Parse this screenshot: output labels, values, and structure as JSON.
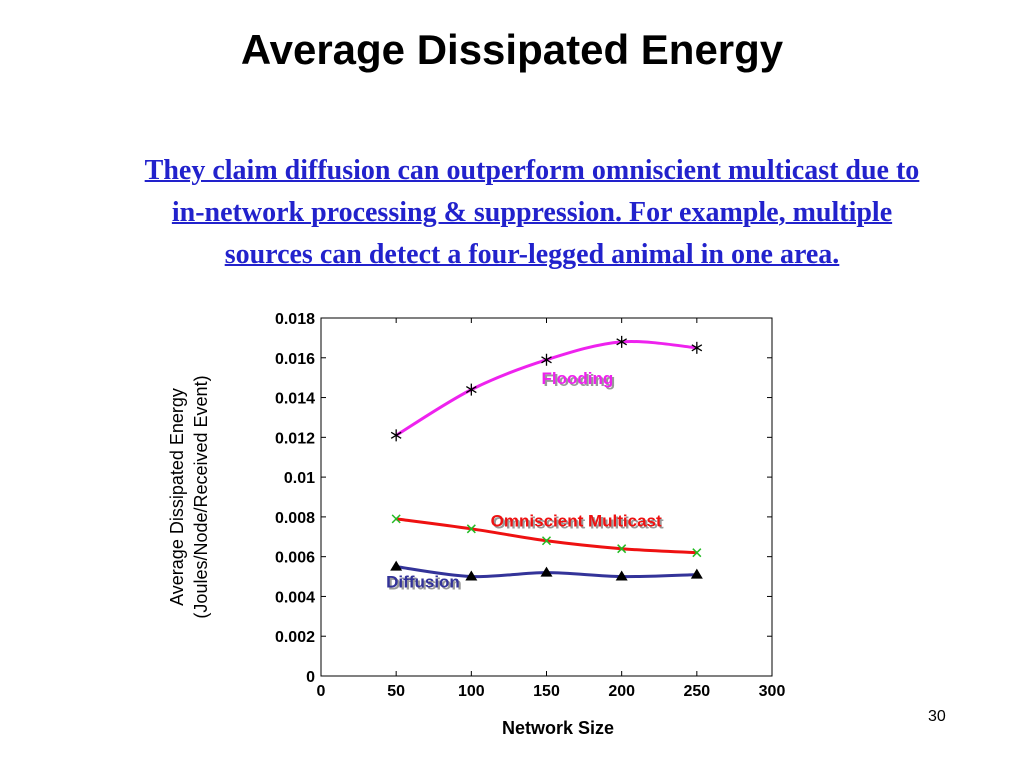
{
  "slide": {
    "title": "Average Dissipated Energy",
    "callout_lines": [
      "They claim diffusion can outperform omniscient multicast due to",
      "in-network processing & suppression. For example, multiple",
      "sources can detect a four-legged animal in one area."
    ],
    "page_number": "30"
  },
  "colors": {
    "callout": "#2222cc",
    "flooding": "#ee22ee",
    "omniscient": "#ee1111",
    "diffusion": "#333399",
    "marker_omni": "#22bb22"
  },
  "chart_data": {
    "type": "line",
    "xlabel": "Network Size",
    "ylabel_lines": [
      "Average Dissipated Energy",
      "(Joules/Node/Received Event)"
    ],
    "xlim": [
      0,
      300
    ],
    "ylim": [
      0,
      0.018
    ],
    "x_ticks": [
      "0",
      "50",
      "100",
      "150",
      "200",
      "250",
      "300"
    ],
    "y_ticks": [
      "0",
      "0.002",
      "0.004",
      "0.006",
      "0.008",
      "0.01",
      "0.012",
      "0.014",
      "0.016",
      "0.018"
    ],
    "grid": false,
    "x": [
      50,
      100,
      150,
      200,
      250
    ],
    "series": [
      {
        "name": "Flooding",
        "marker": "asterisk",
        "color": "#ee22ee",
        "values": [
          0.0121,
          0.0144,
          0.0159,
          0.0168,
          0.0165
        ]
      },
      {
        "name": "Omniscient Multicast",
        "marker": "x",
        "color": "#ee1111",
        "values": [
          0.0079,
          0.0074,
          0.0068,
          0.0064,
          0.0062
        ]
      },
      {
        "name": "Diffusion",
        "marker": "triangle",
        "color": "#333399",
        "values": [
          0.0055,
          0.005,
          0.0052,
          0.005,
          0.0051
        ]
      }
    ]
  }
}
